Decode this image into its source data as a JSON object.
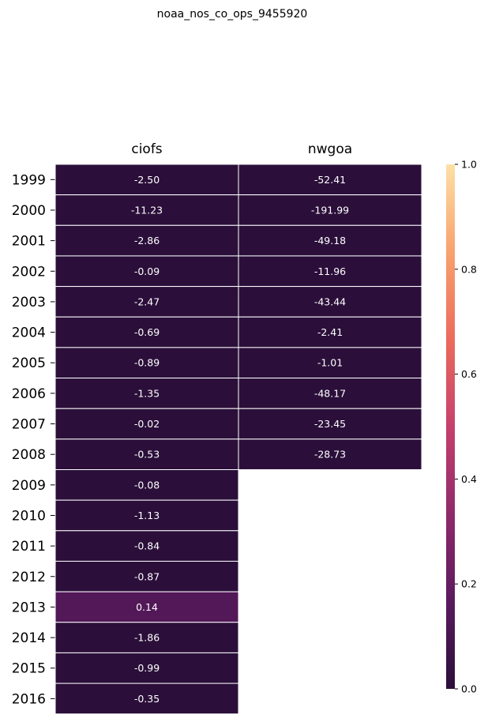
{
  "chart_data": {
    "type": "heatmap",
    "title": "noaa_nos_co_ops_9455920",
    "columns": [
      "ciofs",
      "nwgoa"
    ],
    "rows": [
      "1999",
      "2000",
      "2001",
      "2002",
      "2003",
      "2004",
      "2005",
      "2006",
      "2007",
      "2008",
      "2009",
      "2010",
      "2011",
      "2012",
      "2013",
      "2014",
      "2015",
      "2016"
    ],
    "values": [
      [
        -2.5,
        -52.41
      ],
      [
        -11.23,
        -191.99
      ],
      [
        -2.86,
        -49.18
      ],
      [
        -0.09,
        -11.96
      ],
      [
        -2.47,
        -43.44
      ],
      [
        -0.69,
        -2.41
      ],
      [
        -0.89,
        -1.01
      ],
      [
        -1.35,
        -48.17
      ],
      [
        -0.02,
        -23.45
      ],
      [
        -0.53,
        -28.73
      ],
      [
        -0.08,
        null
      ],
      [
        -1.13,
        null
      ],
      [
        -0.84,
        null
      ],
      [
        -0.87,
        null
      ],
      [
        0.14,
        null
      ],
      [
        -1.86,
        null
      ],
      [
        -0.99,
        null
      ],
      [
        -0.35,
        null
      ]
    ],
    "labels": [
      [
        "-2.50",
        "-52.41"
      ],
      [
        "-11.23",
        "-191.99"
      ],
      [
        "-2.86",
        "-49.18"
      ],
      [
        "-0.09",
        "-11.96"
      ],
      [
        "-2.47",
        "-43.44"
      ],
      [
        "-0.69",
        "-2.41"
      ],
      [
        "-0.89",
        "-1.01"
      ],
      [
        "-1.35",
        "-48.17"
      ],
      [
        "-0.02",
        "-23.45"
      ],
      [
        "-0.53",
        "-28.73"
      ],
      [
        "-0.08",
        ""
      ],
      [
        "-1.13",
        ""
      ],
      [
        "-0.84",
        ""
      ],
      [
        "-0.87",
        ""
      ],
      [
        "0.14",
        ""
      ],
      [
        "-1.86",
        ""
      ],
      [
        "-0.99",
        ""
      ],
      [
        "-0.35",
        ""
      ]
    ],
    "colorbar": {
      "range": [
        0,
        1
      ],
      "ticks": [
        "0.0",
        "0.2",
        "0.4",
        "0.6",
        "0.8",
        "1.0"
      ],
      "colormap": "rocket-magma",
      "colors": [
        "#2b0f3a",
        "#5a1a5e",
        "#8f2a6b",
        "#c6406c",
        "#ec6a5c",
        "#f8a26f",
        "#fde0a6"
      ]
    },
    "column_labels_position": "top",
    "grid_lines": "white"
  }
}
